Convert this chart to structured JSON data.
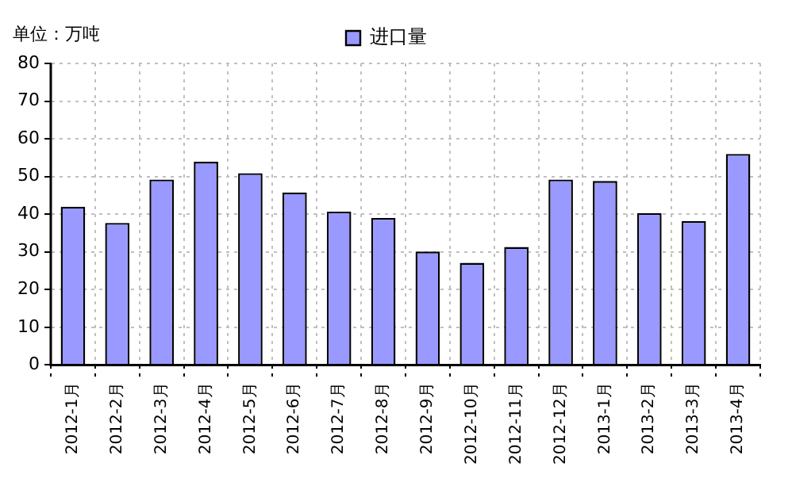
{
  "chart_data": {
    "type": "bar",
    "ylabel": "单位：万吨",
    "categories": [
      "2012-1月",
      "2012-2月",
      "2012-3月",
      "2012-4月",
      "2012-5月",
      "2012-6月",
      "2012-7月",
      "2012-8月",
      "2012-9月",
      "2012-10月",
      "2012-11月",
      "2012-12月",
      "2013-1月",
      "2013-2月",
      "2013-3月",
      "2013-4月"
    ],
    "series": [
      {
        "name": "进口量",
        "color": "#9999ff",
        "values": [
          42,
          37.7,
          49.2,
          53.9,
          50.9,
          45.8,
          40.7,
          39,
          30.1,
          27.1,
          31.3,
          49.2,
          48.8,
          40.3,
          38.2,
          56
        ]
      }
    ],
    "ylim": [
      0,
      80
    ],
    "yticks": [
      0,
      10,
      20,
      30,
      40,
      50,
      60,
      70,
      80
    ],
    "grid": true,
    "legend": "top"
  }
}
